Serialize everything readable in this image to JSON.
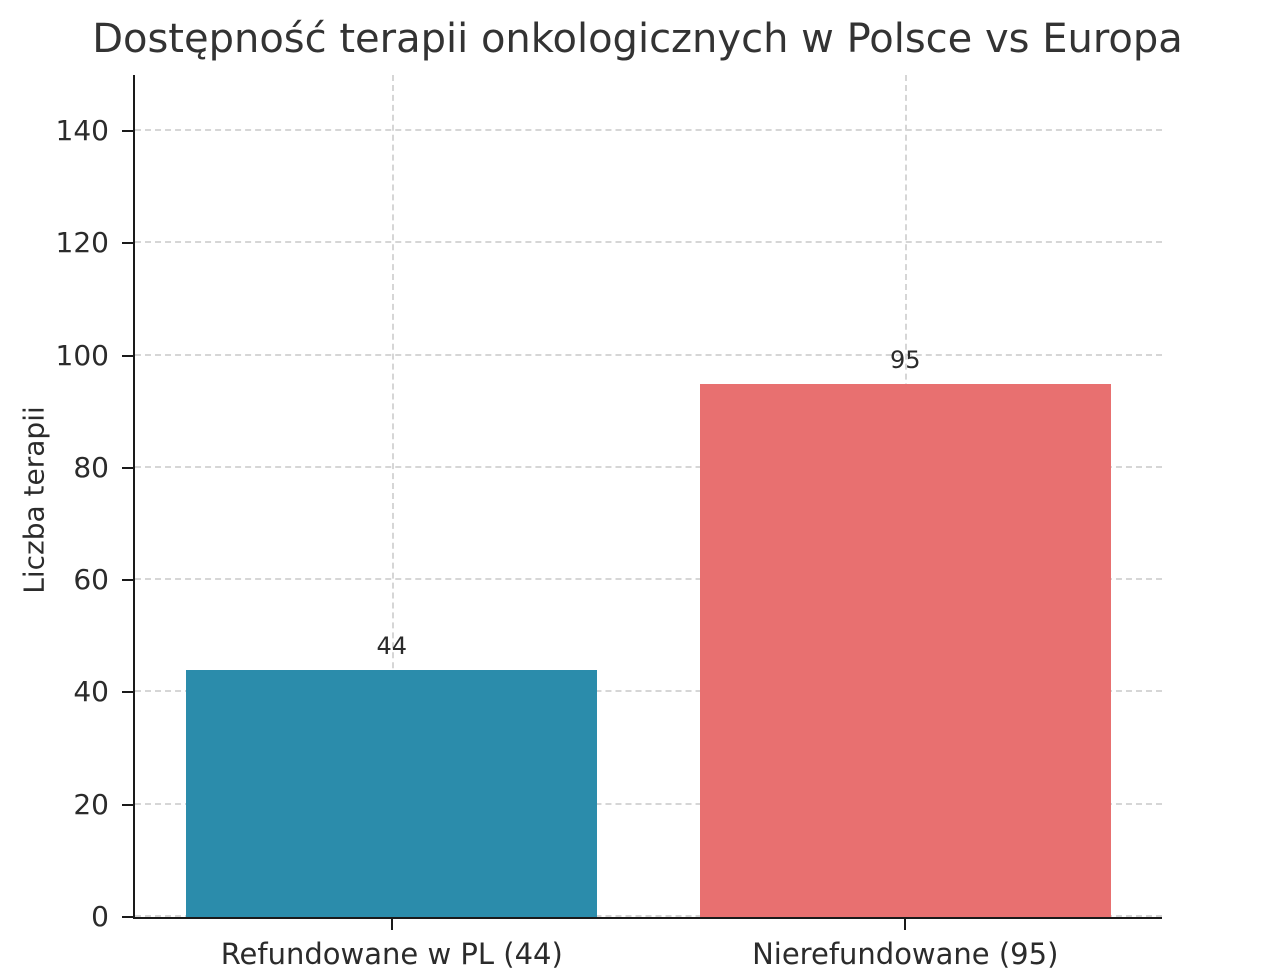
{
  "chart_data": {
    "type": "bar",
    "title": "Dostępność terapii onkologicznych w Polsce vs Europa",
    "xlabel": "",
    "ylabel": "Liczba terapii",
    "categories": [
      "Refundowane w PL (44)",
      "Nierefundowane (95)"
    ],
    "values": [
      44,
      95
    ],
    "value_labels": [
      "44",
      "95"
    ],
    "bar_colors": [
      "#2b8cab",
      "#e87070"
    ],
    "yticks": [
      0,
      20,
      40,
      60,
      80,
      100,
      120,
      140
    ],
    "ylim": [
      0,
      150
    ],
    "grid": "dashed horizontal and vertical, behind bars",
    "legend": "none",
    "spines": "left and bottom only",
    "background": "#ffffff"
  }
}
